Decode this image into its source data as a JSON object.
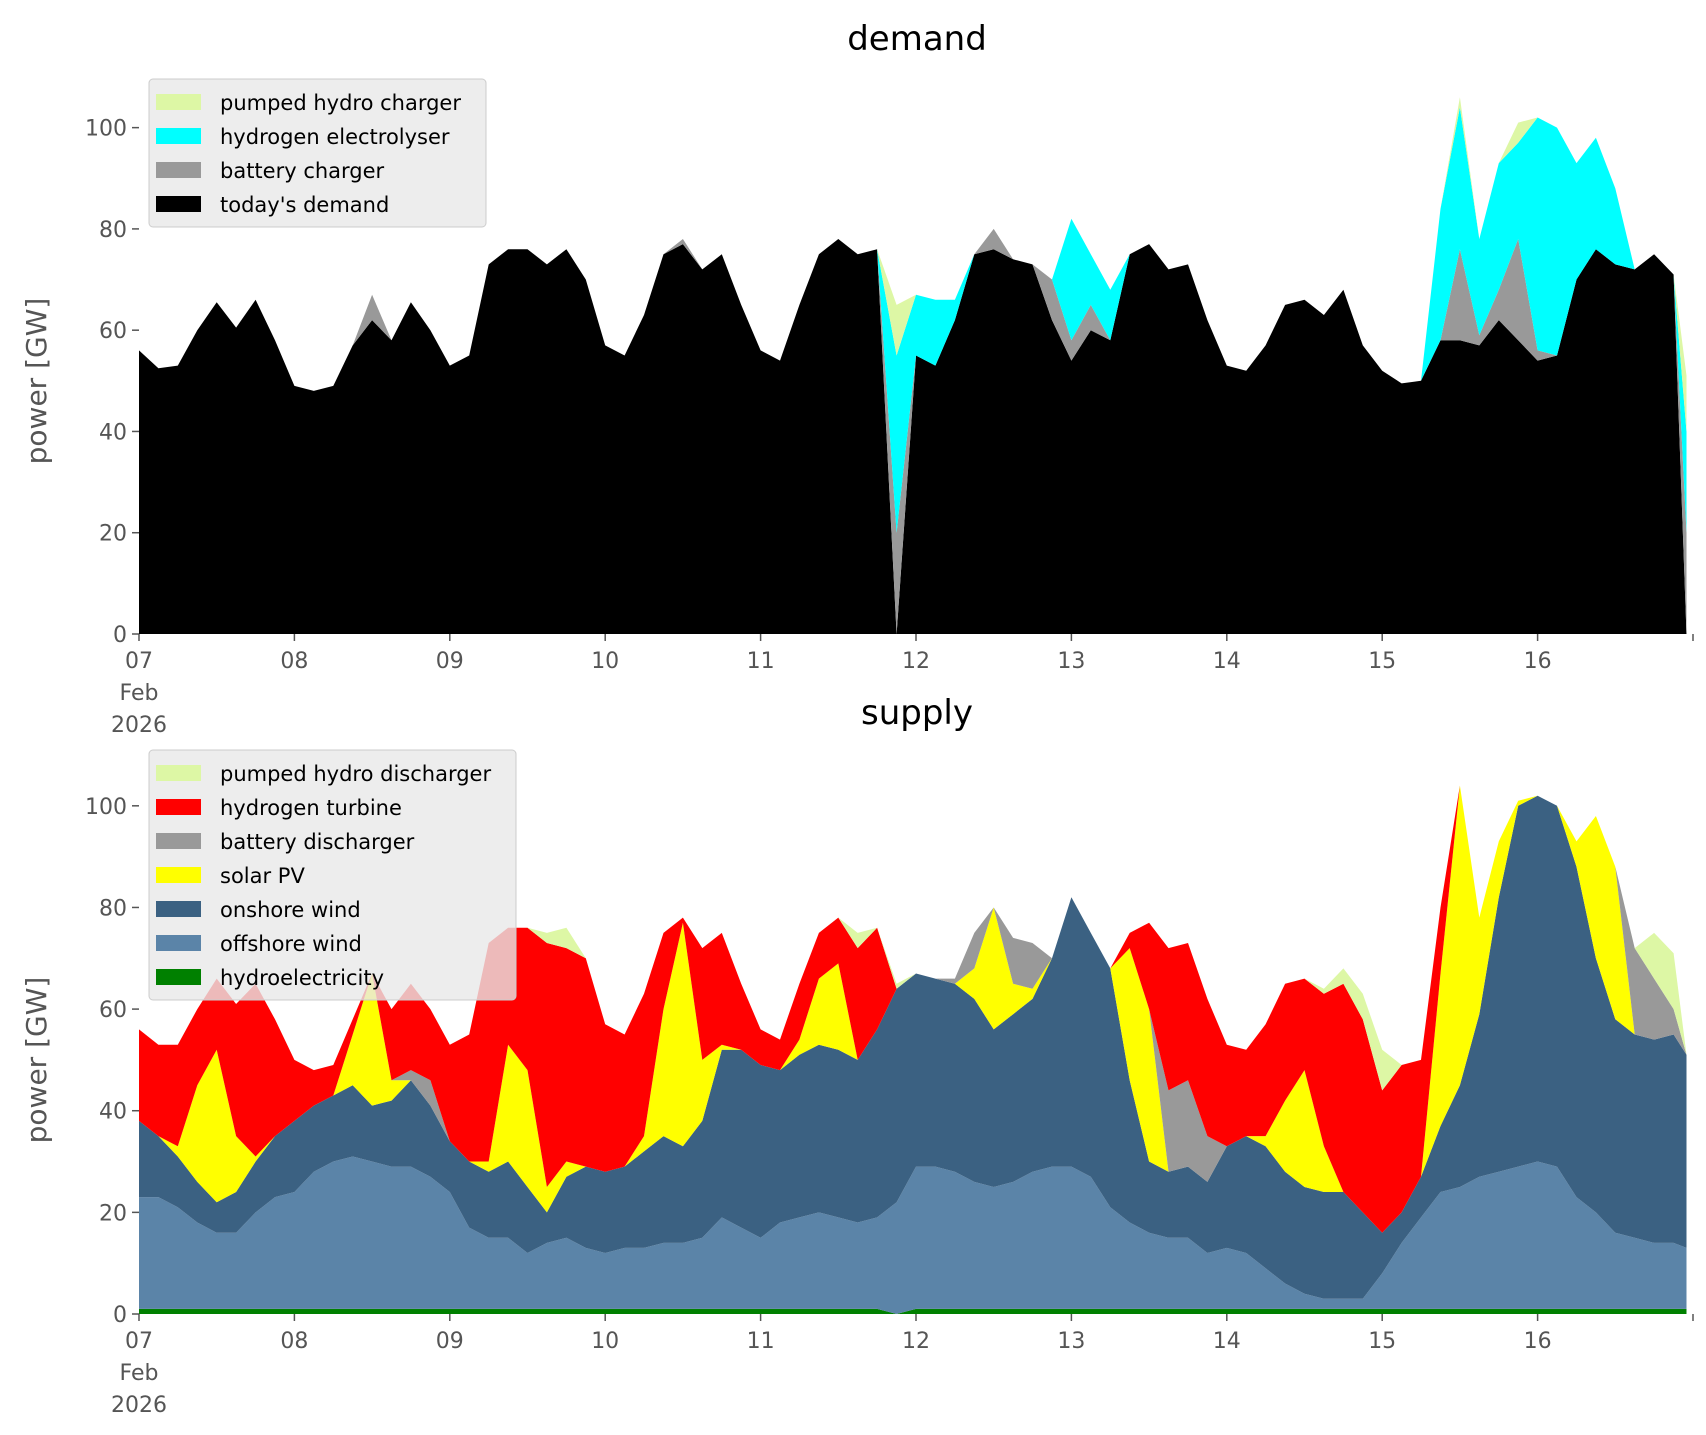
{
  "chart_data": [
    {
      "type": "area",
      "stacked": true,
      "title": "demand",
      "xlabel": "",
      "ylabel": "power [GW]",
      "ylim": [
        0,
        110
      ],
      "yticks": [
        0,
        20,
        40,
        60,
        80,
        100
      ],
      "xticks": [
        "07",
        "08",
        "09",
        "10",
        "11",
        "12",
        "13",
        "14",
        "15",
        "16",
        ""
      ],
      "xtick_sub": [
        "Feb",
        "2026"
      ],
      "grid": false,
      "legend_placement": "top-left",
      "series": [
        {
          "name": "today's demand",
          "color": "#000000",
          "values": [
            56,
            52.5,
            53,
            60,
            65.5,
            60.5,
            66,
            58,
            49,
            48,
            49,
            57,
            62,
            58,
            65.5,
            60,
            53,
            55,
            73,
            76,
            76,
            73,
            76,
            70,
            57,
            55,
            63,
            75,
            77,
            72,
            75,
            65,
            56,
            54,
            65,
            75,
            78,
            75,
            76,
            0,
            55,
            53,
            62,
            75,
            76,
            74,
            73,
            62,
            54,
            60,
            58,
            75,
            77,
            72,
            73,
            62,
            53,
            52,
            57,
            65,
            66,
            63,
            68,
            57,
            52,
            49.5,
            50,
            58,
            58,
            57,
            62,
            58,
            54,
            55,
            70,
            76,
            73,
            72,
            75,
            71,
            0
          ]
        },
        {
          "name": "battery charger",
          "color": "#999999",
          "values": [
            0,
            0,
            0,
            0,
            0,
            0,
            0,
            0,
            0,
            0,
            0,
            0,
            5,
            0,
            0,
            0,
            0,
            0,
            0,
            0,
            0,
            0,
            0,
            0,
            0,
            0,
            0,
            0,
            1,
            0,
            0,
            0,
            0,
            0,
            0,
            0,
            0,
            0,
            0,
            20,
            0,
            0,
            0,
            0,
            4,
            0,
            0,
            8,
            4,
            5,
            0,
            0,
            0,
            0,
            0,
            0,
            0,
            0,
            0,
            0,
            0,
            0,
            0,
            0,
            0,
            0,
            0,
            0,
            18,
            2,
            6,
            20,
            2,
            0,
            0,
            0,
            0,
            0,
            0,
            0,
            20
          ]
        },
        {
          "name": "hydrogen electrolyser",
          "color": "#00ffff",
          "values": [
            0,
            0,
            0,
            0,
            0,
            0,
            0,
            0,
            0,
            0,
            0,
            0,
            0,
            0,
            0,
            0,
            0,
            0,
            0,
            0,
            0,
            0,
            0,
            0,
            0,
            0,
            0,
            0,
            0,
            0,
            0,
            0,
            0,
            0,
            0,
            0,
            0,
            0,
            0,
            35,
            12,
            13,
            4,
            0,
            0,
            0,
            0,
            0,
            24,
            10,
            10,
            0,
            0,
            0,
            0,
            0,
            0,
            0,
            0,
            0,
            0,
            0,
            0,
            0,
            0,
            0,
            0,
            26,
            28,
            19,
            25,
            19,
            46,
            45,
            23,
            22,
            15,
            0,
            0,
            0,
            20
          ]
        },
        {
          "name": "pumped hydro charger",
          "color": "#ddf7a5",
          "values": [
            0,
            0,
            0,
            0,
            0,
            0,
            0,
            0,
            0,
            0,
            0,
            0,
            0,
            0,
            0,
            0,
            0,
            0,
            0,
            0,
            0,
            0,
            0,
            0,
            0,
            0,
            0,
            0,
            0,
            0,
            0,
            0,
            0,
            0,
            0,
            0,
            0,
            0,
            0,
            10,
            0,
            0,
            0,
            0,
            0,
            0,
            0,
            0,
            0,
            0,
            0,
            0,
            0,
            0,
            0,
            0,
            0,
            0,
            0,
            0,
            0,
            0,
            0,
            0,
            0,
            0,
            0,
            0,
            2,
            0,
            0,
            4,
            0,
            0,
            0,
            0,
            0,
            0,
            0,
            0,
            11
          ]
        }
      ],
      "legend_order": [
        "pumped hydro charger",
        "hydrogen electrolyser",
        "battery charger",
        "today's demand"
      ]
    },
    {
      "type": "area",
      "stacked": true,
      "title": "supply",
      "xlabel": "",
      "ylabel": "power [GW]",
      "ylim": [
        0,
        110
      ],
      "yticks": [
        0,
        20,
        40,
        60,
        80,
        100
      ],
      "xticks": [
        "07",
        "08",
        "09",
        "10",
        "11",
        "12",
        "13",
        "14",
        "15",
        "16",
        ""
      ],
      "xtick_sub": [
        "Feb",
        "2026"
      ],
      "grid": false,
      "legend_placement": "top-left",
      "series": [
        {
          "name": "hydroelectricity",
          "color": "#008000",
          "values": [
            1,
            1,
            1,
            1,
            1,
            1,
            1,
            1,
            1,
            1,
            1,
            1,
            1,
            1,
            1,
            1,
            1,
            1,
            1,
            1,
            1,
            1,
            1,
            1,
            1,
            1,
            1,
            1,
            1,
            1,
            1,
            1,
            1,
            1,
            1,
            1,
            1,
            1,
            1,
            0,
            1,
            1,
            1,
            1,
            1,
            1,
            1,
            1,
            1,
            1,
            1,
            1,
            1,
            1,
            1,
            1,
            1,
            1,
            1,
            1,
            1,
            1,
            1,
            1,
            1,
            1,
            1,
            1,
            1,
            1,
            1,
            1,
            1,
            1,
            1,
            1,
            1,
            1,
            1,
            1,
            1
          ]
        },
        {
          "name": "offshore wind",
          "color": "#5b84a8",
          "values": [
            22,
            22,
            20,
            17,
            15,
            15,
            19,
            22,
            23,
            27,
            29,
            30,
            29,
            28,
            28,
            26,
            23,
            16,
            14,
            14,
            11,
            13,
            14,
            12,
            11,
            12,
            12,
            13,
            13,
            14,
            18,
            16,
            14,
            17,
            18,
            19,
            18,
            17,
            18,
            22,
            28,
            28,
            27,
            25,
            24,
            25,
            27,
            28,
            28,
            26,
            20,
            17,
            15,
            14,
            14,
            11,
            12,
            11,
            8,
            5,
            3,
            2,
            2,
            2,
            7,
            13,
            18,
            23,
            24,
            26,
            27,
            28,
            29,
            28,
            22,
            19,
            15,
            14,
            13,
            13,
            12
          ]
        },
        {
          "name": "onshore wind",
          "color": "#3b6182",
          "values": [
            15,
            12,
            10,
            8,
            6,
            8,
            10,
            12,
            14,
            13,
            13,
            14,
            11,
            13,
            17,
            14,
            10,
            13,
            13,
            15,
            13,
            6,
            12,
            16,
            16,
            16,
            19,
            21,
            19,
            23,
            33,
            35,
            34,
            30,
            32,
            33,
            33,
            32,
            37,
            42,
            38,
            37,
            37,
            36,
            31,
            33,
            34,
            41,
            53,
            48,
            47,
            28,
            14,
            13,
            14,
            14,
            20,
            23,
            24,
            22,
            21,
            21,
            21,
            17,
            8,
            6,
            8,
            13,
            20,
            32,
            54,
            71,
            72,
            71,
            65,
            50,
            42,
            40,
            40,
            41,
            38
          ]
        },
        {
          "name": "solar PV",
          "color": "#ffff00",
          "values": [
            0,
            0,
            2,
            19,
            30,
            11,
            1,
            0,
            0,
            0,
            0,
            10,
            26,
            4,
            0,
            0,
            0,
            0,
            2,
            23,
            23,
            5,
            3,
            0,
            0,
            0,
            3,
            25,
            44,
            12,
            1,
            0,
            0,
            0,
            3,
            13,
            17,
            0,
            0,
            0,
            0,
            0,
            0,
            6,
            24,
            6,
            2,
            0,
            0,
            0,
            0,
            26,
            30,
            0,
            0,
            0,
            0,
            0,
            2,
            14,
            23,
            9,
            0,
            0,
            0,
            0,
            0,
            30,
            59,
            19,
            11,
            1,
            0,
            0,
            5,
            28,
            30,
            0,
            0,
            0,
            0
          ]
        },
        {
          "name": "battery discharger",
          "color": "#999999",
          "values": [
            0,
            0,
            0,
            0,
            0,
            0,
            0,
            0,
            0,
            0,
            0,
            0,
            0,
            0,
            2,
            5,
            0,
            0,
            0,
            0,
            0,
            0,
            0,
            0,
            0,
            0,
            0,
            0,
            0,
            0,
            0,
            0,
            0,
            0,
            0,
            0,
            0,
            0,
            0,
            0,
            0,
            0,
            1,
            7,
            0,
            9,
            9,
            0,
            0,
            0,
            0,
            0,
            0,
            16,
            17,
            9,
            0,
            0,
            0,
            0,
            0,
            0,
            0,
            0,
            0,
            0,
            0,
            0,
            0,
            0,
            0,
            0,
            0,
            0,
            0,
            0,
            0,
            17,
            12,
            5,
            0
          ]
        },
        {
          "name": "hydrogen turbine",
          "color": "#ff0000",
          "values": [
            18,
            18,
            20,
            15,
            14,
            26,
            34,
            23,
            12,
            7,
            6,
            3,
            0,
            14,
            17,
            14,
            19,
            25,
            43,
            23,
            28,
            48,
            42,
            41,
            29,
            26,
            28,
            15,
            1,
            22,
            22,
            13,
            7,
            6,
            11,
            9,
            9,
            22,
            20,
            0,
            0,
            0,
            0,
            0,
            0,
            0,
            0,
            0,
            0,
            0,
            0,
            3,
            17,
            28,
            27,
            27,
            20,
            17,
            22,
            23,
            18,
            30,
            41,
            38,
            28,
            29,
            23,
            13,
            0,
            0,
            0,
            0,
            0,
            0,
            0,
            0,
            0,
            0,
            0,
            0,
            0
          ]
        },
        {
          "name": "pumped hydro discharger",
          "color": "#ddf7a5",
          "values": [
            0,
            0,
            0,
            0,
            0,
            0,
            0,
            0,
            0,
            0,
            0,
            0,
            0,
            0,
            0,
            0,
            0,
            0,
            0,
            0,
            0,
            2,
            4,
            0,
            0,
            0,
            0,
            0,
            0,
            0,
            0,
            0,
            0,
            0,
            0,
            0,
            0,
            3,
            0,
            1,
            0,
            0,
            0,
            0,
            0,
            0,
            0,
            0,
            0,
            0,
            0,
            0,
            0,
            0,
            0,
            0,
            0,
            0,
            0,
            0,
            0,
            1,
            3,
            5,
            8,
            0,
            0,
            0,
            0,
            0,
            0,
            0,
            0,
            0,
            0,
            0,
            0,
            0,
            9,
            11,
            0
          ]
        }
      ],
      "legend_order": [
        "pumped hydro discharger",
        "hydrogen turbine",
        "battery discharger",
        "solar PV",
        "onshore wind",
        "offshore wind",
        "hydroelectricity"
      ]
    }
  ],
  "x": [
    "2026-02-07T00",
    "2026-02-07T03",
    "2026-02-07T06",
    "2026-02-07T09",
    "2026-02-07T12",
    "2026-02-07T15",
    "2026-02-07T18",
    "2026-02-07T21",
    "2026-02-08T00",
    "2026-02-08T03",
    "2026-02-08T06",
    "2026-02-08T09",
    "2026-02-08T12",
    "2026-02-08T15",
    "2026-02-08T18",
    "2026-02-08T21",
    "2026-02-09T00",
    "2026-02-09T03",
    "2026-02-09T06",
    "2026-02-09T09",
    "2026-02-09T12",
    "2026-02-09T15",
    "2026-02-09T18",
    "2026-02-09T21",
    "2026-02-10T00",
    "2026-02-10T03",
    "2026-02-10T06",
    "2026-02-10T09",
    "2026-02-10T12",
    "2026-02-10T15",
    "2026-02-10T18",
    "2026-02-10T21",
    "2026-02-11T00",
    "2026-02-11T03",
    "2026-02-11T06",
    "2026-02-11T09",
    "2026-02-11T12",
    "2026-02-11T15",
    "2026-02-11T18",
    "2026-02-11T21",
    "2026-02-12T00",
    "2026-02-12T03",
    "2026-02-12T06",
    "2026-02-12T09",
    "2026-02-12T12",
    "2026-02-12T15",
    "2026-02-12T18",
    "2026-02-12T21",
    "2026-02-13T00",
    "2026-02-13T03",
    "2026-02-13T06",
    "2026-02-13T09",
    "2026-02-13T12",
    "2026-02-13T15",
    "2026-02-13T18",
    "2026-02-13T21",
    "2026-02-14T00",
    "2026-02-14T03",
    "2026-02-14T06",
    "2026-02-14T09",
    "2026-02-14T12",
    "2026-02-14T15",
    "2026-02-14T18",
    "2026-02-14T21",
    "2026-02-15T00",
    "2026-02-15T03",
    "2026-02-15T06",
    "2026-02-15T09",
    "2026-02-15T12",
    "2026-02-15T15",
    "2026-02-15T18",
    "2026-02-15T21",
    "2026-02-16T00",
    "2026-02-16T03",
    "2026-02-16T06",
    "2026-02-16T09",
    "2026-02-16T12",
    "2026-02-16T15",
    "2026-02-16T18",
    "2026-02-16T21",
    "2026-02-16T23"
  ],
  "xlim": [
    "2026-02-07T00",
    "2026-02-17T00"
  ]
}
